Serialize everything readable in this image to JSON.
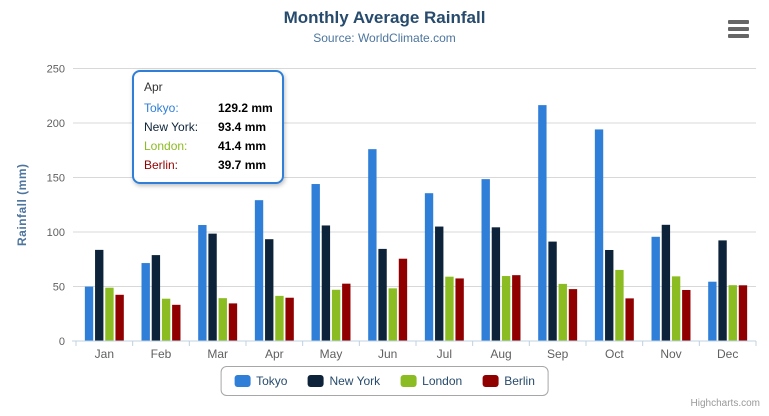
{
  "chart_data": {
    "type": "bar",
    "title": "Monthly Average Rainfall",
    "subtitle": "Source: WorldClimate.com",
    "categories": [
      "Jan",
      "Feb",
      "Mar",
      "Apr",
      "May",
      "Jun",
      "Jul",
      "Aug",
      "Sep",
      "Oct",
      "Nov",
      "Dec"
    ],
    "series": [
      {
        "name": "Tokyo",
        "color": "#2f7ed8",
        "values": [
          49.9,
          71.5,
          106.4,
          129.2,
          144.0,
          176.0,
          135.6,
          148.5,
          216.4,
          194.1,
          95.6,
          54.4
        ]
      },
      {
        "name": "New York",
        "color": "#0d233a",
        "values": [
          83.6,
          78.8,
          98.5,
          93.4,
          106.0,
          84.5,
          105.0,
          104.3,
          91.2,
          83.5,
          106.6,
          92.3
        ]
      },
      {
        "name": "London",
        "color": "#8bbc21",
        "values": [
          48.9,
          38.8,
          39.3,
          41.4,
          47.0,
          48.3,
          59.0,
          59.6,
          52.4,
          65.2,
          59.3,
          51.2
        ]
      },
      {
        "name": "Berlin",
        "color": "#910000",
        "values": [
          42.4,
          33.2,
          34.5,
          39.7,
          52.6,
          75.5,
          57.4,
          60.4,
          47.6,
          39.1,
          46.8,
          51.1
        ]
      }
    ],
    "xlabel": "",
    "ylabel": "Rainfall (mm)",
    "ylim": [
      0,
      250
    ],
    "yticks": [
      0,
      50,
      100,
      150,
      200,
      250
    ],
    "grid": true,
    "legend_position": "bottom-center"
  },
  "tooltip": {
    "header": "Apr",
    "border_color": "#2f7ed8",
    "rows": [
      {
        "label": "Tokyo:",
        "value": "129.2 mm",
        "color": "#2f7ed8"
      },
      {
        "label": "New York:",
        "value": "93.4 mm",
        "color": "#0d233a"
      },
      {
        "label": "London:",
        "value": "41.4 mm",
        "color": "#8bbc21"
      },
      {
        "label": "Berlin:",
        "value": "39.7 mm",
        "color": "#910000"
      }
    ]
  },
  "icons": {
    "context_menu": "hamburger-menu-icon"
  },
  "credits": {
    "label": "Highcharts.com"
  },
  "theme": {
    "title_color": "#274b6d",
    "subtitle_color": "#4d759e",
    "axis_title_color": "#4d759e",
    "axis_label_color": "#606060",
    "grid_color": "#d8d8d8",
    "axis_line_color": "#c0d0e0",
    "legend_text_color": "#274b6d",
    "credits_color": "#999999",
    "background": "#ffffff"
  }
}
